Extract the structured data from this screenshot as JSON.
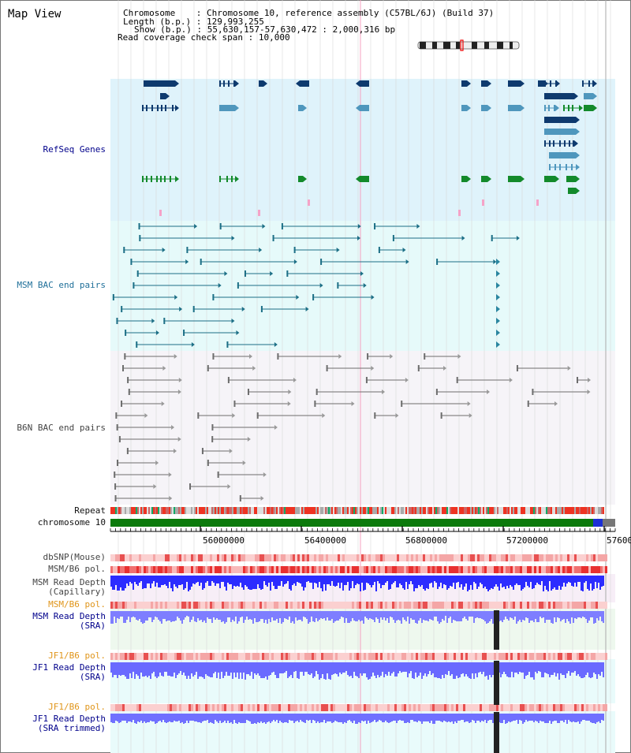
{
  "title": "Map View",
  "info": {
    "chromosome_label": "Chromosome",
    "chromosome_value": "Chromosome 10, reference assembly (C57BL/6J) (Build 37)",
    "length_label": "Length (b.p.)",
    "length_value": "129,993,255",
    "show_label": "Show (b.p.)",
    "show_value": "55,630,157-57,630,472 : 2,000,316 bp",
    "coverage_label": "Read coverage check span",
    "coverage_value": "10,000"
  },
  "tracks": {
    "refseq": "RefSeq Genes",
    "msm_bac": "MSM BAC end pairs",
    "b6n_bac": "B6N BAC end pairs",
    "repeat": "Repeat",
    "chromosome": "chromosome 10",
    "dbsnp": "dbSNP(Mouse)",
    "msm_b6_pol_1": "MSM/B6 pol.",
    "msm_depth_cap_1": "MSM Read Depth",
    "msm_depth_cap_2": "(Capillary)",
    "msm_b6_pol_2": "MSM/B6 pol.",
    "msm_depth_sra_1": "MSM Read Depth",
    "msm_depth_sra_2": "(SRA)",
    "jf1_pol_1": "JF1/B6 pol.",
    "jf1_depth_sra_1": "JF1 Read Depth",
    "jf1_depth_sra_2": "(SRA)",
    "jf1_pol_2": "JF1/B6 pol.",
    "jf1_depth_trim_1": "JF1 Read Depth",
    "jf1_depth_trim_2": "(SRA trimmed)"
  },
  "axis": {
    "ticks": [
      "56000000",
      "56400000",
      "56800000",
      "57200000",
      "57600"
    ]
  },
  "colors": {
    "refseq_bg": "#dff3fb",
    "msm_bg": "#e6fafa",
    "b6n_bg": "#f6f4f8",
    "refseq_dark": "#0e3a6e",
    "refseq_mid": "#4f97bd",
    "refseq_green": "#138a2b",
    "bac_teal": "#1c6f86",
    "bac_gray": "#6d6d6d",
    "chrom_green": "#0c7a0c",
    "depth_blue": "#2c2cff",
    "depth_light": "#7e7eff"
  }
}
